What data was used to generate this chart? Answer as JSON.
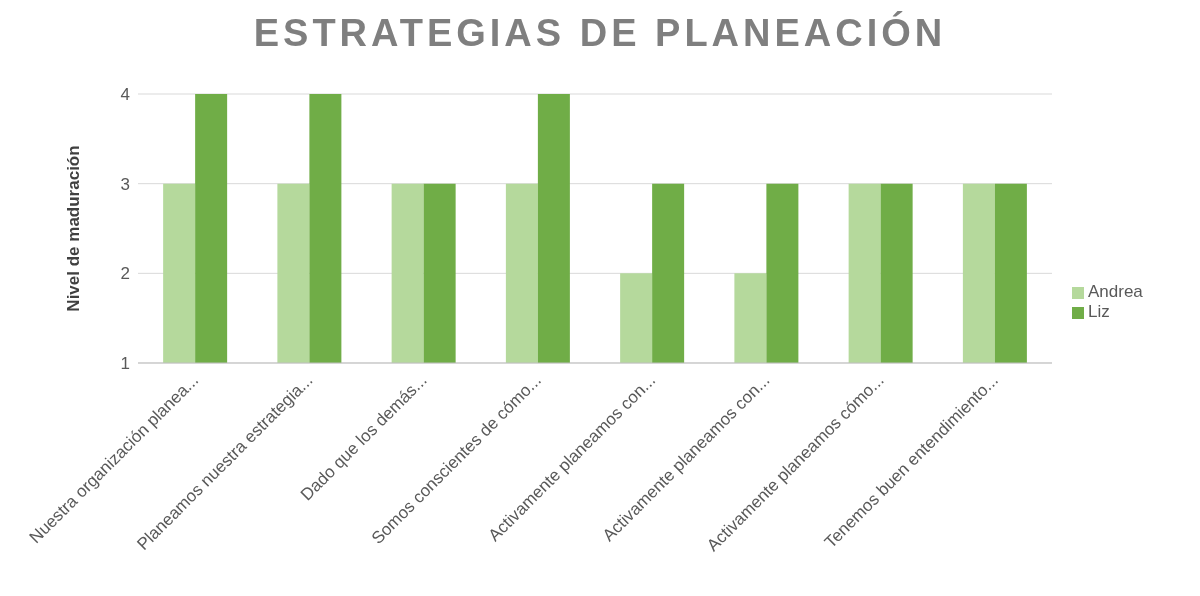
{
  "chart_data": {
    "type": "bar",
    "title": "ESTRATEGIAS DE PLANEACIÓN",
    "ylabel": "Nivel de maduración",
    "categories": [
      "Nuestra organización planea...",
      "Planeamos nuestra estrategia...",
      "Dado que los demás...",
      "Somos conscientes de cómo...",
      "Activamente planeamos con...",
      "Activamente planeamos con...",
      "Activamente planeamos cómo...",
      "Tenemos buen entendimiento..."
    ],
    "series": [
      {
        "name": "Andrea",
        "color": "#b5d99c",
        "values": [
          3,
          3,
          3,
          3,
          2,
          2,
          3,
          3
        ]
      },
      {
        "name": "Liz",
        "color": "#70ad47",
        "values": [
          4,
          4,
          3,
          4,
          3,
          3,
          3,
          3
        ]
      }
    ],
    "ylim": [
      1,
      4
    ],
    "yticks": [
      1,
      2,
      3,
      4
    ],
    "grid": "y",
    "legend": "right"
  }
}
